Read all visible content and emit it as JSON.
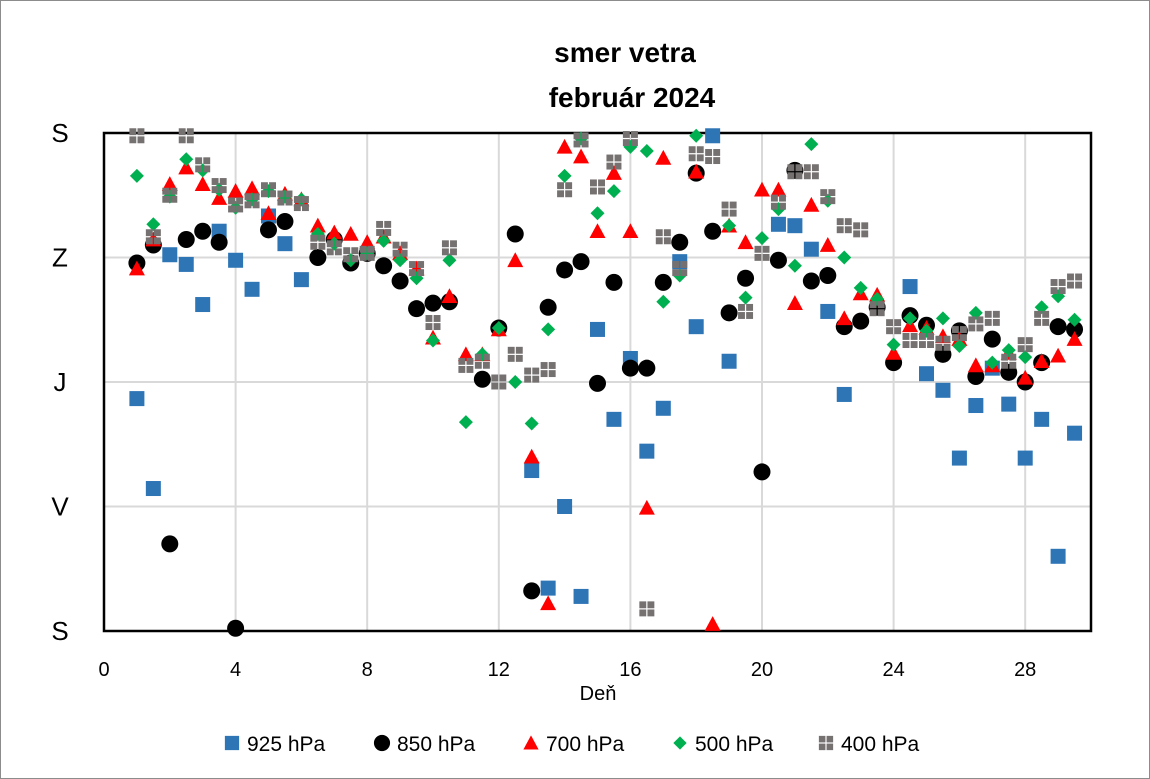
{
  "chart_data": {
    "type": "scatter",
    "title": "smer vetra",
    "subtitle": "február 2024",
    "xlabel": "Deň",
    "ylabel": "",
    "xlim": [
      0,
      30
    ],
    "ylim": [
      0,
      360
    ],
    "x_ticks": [
      0,
      4,
      8,
      12,
      16,
      20,
      24,
      28
    ],
    "y_ticks": [
      {
        "value": 360,
        "label": "S"
      },
      {
        "value": 270,
        "label": "Z"
      },
      {
        "value": 180,
        "label": "J"
      },
      {
        "value": 90,
        "label": "V"
      },
      {
        "value": 0,
        "label": "S"
      }
    ],
    "grid": true,
    "legend_position": "bottom",
    "series": [
      {
        "name": "925 hPa",
        "marker": "square",
        "color": "#2E75B6",
        "points": [
          [
            1,
            168
          ],
          [
            1.5,
            103
          ],
          [
            2,
            272
          ],
          [
            2.5,
            265
          ],
          [
            3,
            236
          ],
          [
            3.5,
            289
          ],
          [
            4,
            268
          ],
          [
            4.5,
            247
          ],
          [
            5,
            300
          ],
          [
            5.5,
            280
          ],
          [
            6,
            254
          ],
          [
            13,
            116
          ],
          [
            13.5,
            31
          ],
          [
            14,
            90
          ],
          [
            14.5,
            25
          ],
          [
            15,
            218
          ],
          [
            15.5,
            153
          ],
          [
            16,
            197
          ],
          [
            16.5,
            130
          ],
          [
            17,
            161
          ],
          [
            17.5,
            267
          ],
          [
            18,
            220
          ],
          [
            18.5,
            358
          ],
          [
            19,
            195
          ],
          [
            20.5,
            294
          ],
          [
            21,
            293
          ],
          [
            21.5,
            276
          ],
          [
            22,
            231
          ],
          [
            22.5,
            171
          ],
          [
            24.5,
            249
          ],
          [
            25,
            186
          ],
          [
            25.5,
            174
          ],
          [
            26,
            125
          ],
          [
            26.5,
            163
          ],
          [
            27,
            190
          ],
          [
            27.5,
            164
          ],
          [
            28,
            125
          ],
          [
            28.5,
            153
          ],
          [
            29,
            54
          ],
          [
            29.5,
            143
          ]
        ]
      },
      {
        "name": "850 hPa",
        "marker": "circle",
        "color": "#000000",
        "points": [
          [
            1,
            266
          ],
          [
            1.5,
            279
          ],
          [
            2,
            63
          ],
          [
            2.5,
            283
          ],
          [
            3,
            289
          ],
          [
            3.5,
            281
          ],
          [
            4,
            2
          ],
          [
            5,
            290
          ],
          [
            5.5,
            296
          ],
          [
            6.5,
            270
          ],
          [
            7,
            283
          ],
          [
            7.5,
            266
          ],
          [
            8,
            273
          ],
          [
            8.5,
            264
          ],
          [
            9,
            253
          ],
          [
            9.5,
            233
          ],
          [
            10,
            237
          ],
          [
            10.5,
            238
          ],
          [
            11.5,
            182
          ],
          [
            12,
            219
          ],
          [
            12.5,
            287
          ],
          [
            13,
            29
          ],
          [
            13.5,
            234
          ],
          [
            14,
            261
          ],
          [
            14.5,
            267
          ],
          [
            15,
            179
          ],
          [
            15.5,
            252
          ],
          [
            16,
            190
          ],
          [
            16.5,
            190
          ],
          [
            17,
            252
          ],
          [
            17.5,
            281
          ],
          [
            18,
            331
          ],
          [
            18.5,
            289
          ],
          [
            19,
            230
          ],
          [
            19.5,
            255
          ],
          [
            20,
            115
          ],
          [
            20.5,
            268
          ],
          [
            21,
            333
          ],
          [
            21.5,
            253
          ],
          [
            22,
            257
          ],
          [
            22.5,
            220
          ],
          [
            23,
            224
          ],
          [
            23.5,
            234
          ],
          [
            24,
            194
          ],
          [
            24.5,
            228
          ],
          [
            25,
            221
          ],
          [
            25.5,
            200
          ],
          [
            26,
            217
          ],
          [
            26.5,
            184
          ],
          [
            27,
            211
          ],
          [
            27.5,
            187
          ],
          [
            28,
            180
          ],
          [
            28.5,
            194
          ],
          [
            29,
            220
          ],
          [
            29.5,
            218
          ]
        ]
      },
      {
        "name": "700 hPa",
        "marker": "triangle",
        "color": "#FF0000",
        "points": [
          [
            1,
            262
          ],
          [
            1.5,
            283
          ],
          [
            2,
            323
          ],
          [
            2.5,
            335
          ],
          [
            3,
            323
          ],
          [
            3.5,
            313
          ],
          [
            4,
            318
          ],
          [
            4.5,
            320
          ],
          [
            5,
            302
          ],
          [
            5.5,
            316
          ],
          [
            6,
            312
          ],
          [
            6.5,
            293
          ],
          [
            7,
            288
          ],
          [
            7.5,
            287
          ],
          [
            8,
            281
          ],
          [
            8.5,
            285
          ],
          [
            9,
            273
          ],
          [
            9.5,
            262
          ],
          [
            10,
            212
          ],
          [
            10.5,
            242
          ],
          [
            11,
            200
          ],
          [
            11.5,
            200
          ],
          [
            12,
            218
          ],
          [
            12.5,
            268
          ],
          [
            13,
            126
          ],
          [
            13.5,
            20
          ],
          [
            14,
            350
          ],
          [
            14.5,
            343
          ],
          [
            15,
            289
          ],
          [
            15.5,
            331
          ],
          [
            16,
            289
          ],
          [
            16.5,
            89
          ],
          [
            17,
            342
          ],
          [
            18,
            332
          ],
          [
            18.5,
            5
          ],
          [
            19,
            293
          ],
          [
            19.5,
            281
          ],
          [
            20,
            319
          ],
          [
            20.5,
            319
          ],
          [
            21,
            237
          ],
          [
            21.5,
            308
          ],
          [
            22,
            279
          ],
          [
            22.5,
            226
          ],
          [
            23,
            244
          ],
          [
            23.5,
            243
          ],
          [
            24,
            201
          ],
          [
            24.5,
            221
          ],
          [
            25,
            219
          ],
          [
            25.5,
            213
          ],
          [
            26,
            211
          ],
          [
            26.5,
            192
          ],
          [
            27,
            192
          ],
          [
            27.5,
            201
          ],
          [
            28,
            183
          ],
          [
            28.5,
            195
          ],
          [
            29,
            199
          ],
          [
            29.5,
            211
          ]
        ]
      },
      {
        "name": "500 hPa",
        "marker": "diamond",
        "color": "#00B050",
        "points": [
          [
            1,
            329
          ],
          [
            1.5,
            294
          ],
          [
            2,
            314
          ],
          [
            2.5,
            341
          ],
          [
            3,
            333
          ],
          [
            3.5,
            319
          ],
          [
            4,
            306
          ],
          [
            4.5,
            312
          ],
          [
            5,
            318
          ],
          [
            5.5,
            314
          ],
          [
            6,
            312
          ],
          [
            6.5,
            287
          ],
          [
            7,
            280
          ],
          [
            7.5,
            268
          ],
          [
            8,
            273
          ],
          [
            8.5,
            282
          ],
          [
            9,
            268
          ],
          [
            9.5,
            255
          ],
          [
            10,
            210
          ],
          [
            10.5,
            268
          ],
          [
            11,
            151
          ],
          [
            11.5,
            200
          ],
          [
            12,
            219
          ],
          [
            12.5,
            180
          ],
          [
            13,
            150
          ],
          [
            13.5,
            218
          ],
          [
            14,
            329
          ],
          [
            14.5,
            356
          ],
          [
            15,
            302
          ],
          [
            15.5,
            318
          ],
          [
            16,
            350
          ],
          [
            16.5,
            347
          ],
          [
            17,
            238
          ],
          [
            17.5,
            257
          ],
          [
            18,
            358
          ],
          [
            19,
            293
          ],
          [
            19.5,
            241
          ],
          [
            20,
            284
          ],
          [
            20.5,
            305
          ],
          [
            21,
            264
          ],
          [
            21.5,
            352
          ],
          [
            22,
            311
          ],
          [
            22.5,
            270
          ],
          [
            23,
            248
          ],
          [
            23.5,
            240
          ],
          [
            24,
            207
          ],
          [
            24.5,
            226
          ],
          [
            25,
            217
          ],
          [
            25.5,
            226
          ],
          [
            26,
            206
          ],
          [
            26.5,
            230
          ],
          [
            27,
            194
          ],
          [
            27.5,
            203
          ],
          [
            28,
            198
          ],
          [
            28.5,
            234
          ],
          [
            29,
            242
          ],
          [
            29.5,
            225
          ]
        ]
      },
      {
        "name": "400 hPa",
        "marker": "grid-square",
        "color": "#767171",
        "points": [
          [
            1,
            358
          ],
          [
            1.5,
            285
          ],
          [
            2,
            315
          ],
          [
            2.5,
            358
          ],
          [
            3,
            337
          ],
          [
            3.5,
            322
          ],
          [
            4,
            308
          ],
          [
            4.5,
            311
          ],
          [
            5,
            319
          ],
          [
            5.5,
            313
          ],
          [
            6,
            309
          ],
          [
            6.5,
            281
          ],
          [
            7,
            277
          ],
          [
            7.5,
            272
          ],
          [
            8,
            273
          ],
          [
            8.5,
            291
          ],
          [
            9,
            276
          ],
          [
            9.5,
            262
          ],
          [
            10,
            223
          ],
          [
            10.5,
            277
          ],
          [
            11,
            192
          ],
          [
            11.5,
            195
          ],
          [
            12,
            180
          ],
          [
            12.5,
            200
          ],
          [
            13,
            185
          ],
          [
            13.5,
            189
          ],
          [
            14,
            319
          ],
          [
            14.5,
            355
          ],
          [
            15,
            321
          ],
          [
            15.5,
            339
          ],
          [
            16,
            356
          ],
          [
            16.5,
            16
          ],
          [
            17,
            285
          ],
          [
            17.5,
            262
          ],
          [
            18,
            345
          ],
          [
            18.5,
            343
          ],
          [
            19,
            305
          ],
          [
            19.5,
            231
          ],
          [
            20,
            273
          ],
          [
            20.5,
            310
          ],
          [
            21,
            332
          ],
          [
            21.5,
            332
          ],
          [
            22,
            314
          ],
          [
            22.5,
            293
          ],
          [
            23,
            290
          ],
          [
            23.5,
            233
          ],
          [
            24,
            220
          ],
          [
            24.5,
            210
          ],
          [
            25,
            210
          ],
          [
            25.5,
            208
          ],
          [
            26,
            215
          ],
          [
            26.5,
            222
          ],
          [
            27,
            226
          ],
          [
            27.5,
            195
          ],
          [
            28,
            207
          ],
          [
            28.5,
            226
          ],
          [
            29,
            249
          ],
          [
            29.5,
            253
          ]
        ]
      }
    ]
  }
}
